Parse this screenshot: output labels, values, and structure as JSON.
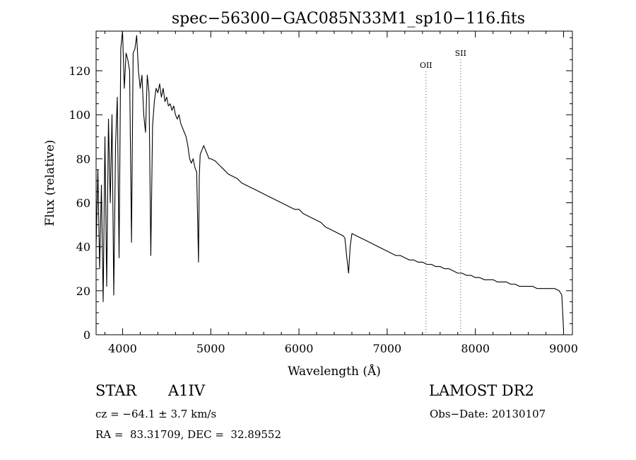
{
  "chart_data": {
    "type": "line",
    "title": "spec−56300−GAC085N33M1_sp10−116.fits",
    "xlabel": "Wavelength (Å)",
    "ylabel": "Flux (relative)",
    "xlim": [
      3700,
      9100
    ],
    "ylim": [
      0,
      138
    ],
    "xticks": [
      4000,
      5000,
      6000,
      7000,
      8000,
      9000
    ],
    "yticks": [
      0,
      20,
      40,
      60,
      80,
      100,
      120
    ],
    "grid": false,
    "series": [
      {
        "x": [
          3700,
          3720,
          3740,
          3760,
          3780,
          3800,
          3820,
          3840,
          3860,
          3880,
          3900,
          3920,
          3940,
          3960,
          3980,
          4000,
          4020,
          4040,
          4060,
          4080,
          4101,
          4120,
          4140,
          4160,
          4180,
          4200,
          4220,
          4240,
          4260,
          4280,
          4300,
          4320,
          4340,
          4360,
          4380,
          4400,
          4420,
          4440,
          4460,
          4480,
          4500,
          4520,
          4540,
          4560,
          4580,
          4600,
          4620,
          4640,
          4660,
          4680,
          4700,
          4720,
          4740,
          4760,
          4780,
          4800,
          4820,
          4840,
          4850,
          4861,
          4870,
          4880,
          4900,
          4920,
          4940,
          4960,
          4980,
          5000,
          5050,
          5100,
          5150,
          5200,
          5250,
          5300,
          5350,
          5400,
          5450,
          5500,
          5550,
          5600,
          5650,
          5700,
          5750,
          5800,
          5850,
          5900,
          5950,
          6000,
          6050,
          6100,
          6150,
          6200,
          6250,
          6300,
          6350,
          6400,
          6450,
          6500,
          6520,
          6540,
          6563,
          6580,
          6600,
          6650,
          6700,
          6750,
          6800,
          6850,
          6900,
          6950,
          7000,
          7050,
          7100,
          7150,
          7200,
          7250,
          7300,
          7350,
          7400,
          7450,
          7500,
          7550,
          7600,
          7650,
          7700,
          7750,
          7800,
          7850,
          7900,
          7950,
          8000,
          8050,
          8100,
          8150,
          8200,
          8250,
          8300,
          8350,
          8400,
          8450,
          8500,
          8550,
          8600,
          8650,
          8700,
          8750,
          8800,
          8850,
          8900,
          8950,
          8980,
          9000
        ],
        "y": [
          40,
          75,
          30,
          68,
          15,
          90,
          22,
          98,
          60,
          100,
          18,
          86,
          108,
          35,
          130,
          138,
          112,
          128,
          125,
          120,
          42,
          128,
          130,
          136,
          120,
          112,
          118,
          100,
          92,
          118,
          110,
          36,
          95,
          106,
          112,
          110,
          114,
          108,
          112,
          106,
          108,
          104,
          105,
          102,
          104,
          100,
          98,
          100,
          96,
          94,
          92,
          90,
          86,
          80,
          78,
          80,
          76,
          74,
          55,
          33,
          72,
          82,
          84,
          86,
          84,
          82,
          80,
          80,
          79,
          77,
          75,
          73,
          72,
          71,
          69,
          68,
          67,
          66,
          65,
          64,
          63,
          62,
          61,
          60,
          59,
          58,
          57,
          57,
          55,
          54,
          53,
          52,
          51,
          49,
          48,
          47,
          46,
          45,
          44,
          36,
          28,
          40,
          46,
          45,
          44,
          43,
          42,
          41,
          40,
          39,
          38,
          37,
          36,
          36,
          35,
          34,
          34,
          33,
          33,
          32,
          32,
          31,
          31,
          30,
          30,
          29,
          28,
          28,
          27,
          27,
          26,
          26,
          25,
          25,
          25,
          24,
          24,
          24,
          23,
          23,
          22,
          22,
          22,
          22,
          21,
          21,
          21,
          21,
          21,
          20,
          18,
          2
        ]
      }
    ],
    "annotations": [
      {
        "label": "OII",
        "x": 7440
      },
      {
        "label": "SII",
        "x": 7833
      }
    ]
  },
  "info": {
    "object_type": "STAR",
    "subclass": "A1IV",
    "survey": "LAMOST DR2",
    "velocity": "cz = −64.1 ± 3.7 km/s",
    "obs_date": "Obs−Date: 20130107",
    "coords": "RA =  83.31709, DEC =  32.89552"
  }
}
